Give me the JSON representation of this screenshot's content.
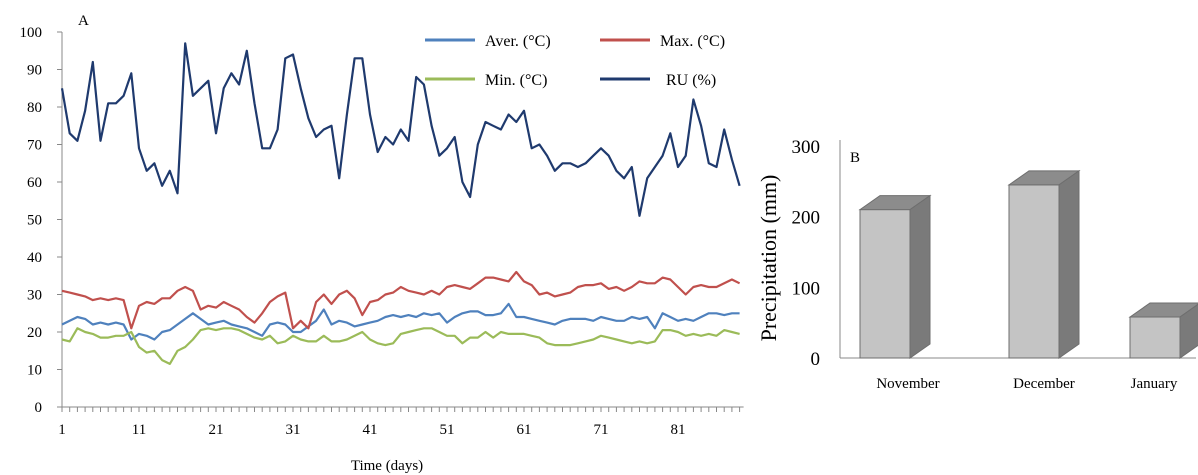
{
  "chart_data": [
    {
      "type": "line",
      "panel_label": "A",
      "xlabel": "Time (days)",
      "ylabel": "",
      "xlim": [
        1,
        89
      ],
      "ylim": [
        0,
        100
      ],
      "yticks": [
        0,
        10,
        20,
        30,
        40,
        50,
        60,
        70,
        80,
        90,
        100
      ],
      "xticks": [
        1,
        11,
        21,
        31,
        41,
        51,
        61,
        71,
        81
      ],
      "legend_position": "top-right",
      "series": [
        {
          "name": "Aver. (°C)",
          "color": "#4f81bd",
          "values": [
            22,
            23,
            24,
            23.5,
            22,
            22.5,
            22,
            22.5,
            22,
            18,
            19.5,
            19,
            18,
            20,
            20.5,
            22,
            23.5,
            25,
            23.5,
            22,
            22.5,
            23,
            22,
            21.5,
            21,
            20,
            19,
            22,
            22.5,
            22,
            20,
            20,
            21.5,
            23,
            26,
            22,
            23,
            22.5,
            21.5,
            22,
            22.5,
            23,
            24,
            24.5,
            24,
            24.5,
            24,
            25,
            24.5,
            25,
            22.5,
            24,
            25,
            25.5,
            25.5,
            24.5,
            24.5,
            25,
            27.5,
            24,
            24,
            23.5,
            23,
            22.5,
            22,
            23,
            23.5,
            23.5,
            23.5,
            23,
            24,
            23.5,
            23,
            23,
            24,
            23.5,
            24,
            21,
            25,
            24,
            23,
            23.5,
            23,
            24,
            25,
            25,
            24.5,
            25,
            25
          ]
        },
        {
          "name": "Max. (°C)",
          "color": "#c0504d",
          "values": [
            31,
            30.5,
            30,
            29.5,
            28.5,
            29,
            28.5,
            29,
            28.5,
            21,
            27,
            28,
            27.5,
            29,
            29,
            31,
            32,
            31,
            26,
            27,
            26.5,
            28,
            27,
            26,
            24,
            22.5,
            25,
            28,
            29.5,
            30.5,
            21,
            23,
            21,
            28,
            30,
            27.5,
            30,
            31,
            29,
            24.5,
            28,
            28.5,
            30,
            30.5,
            32,
            31,
            30.5,
            30,
            31,
            30,
            32,
            32.5,
            32,
            31.5,
            33,
            34.5,
            34.5,
            34,
            33.5,
            36,
            33.5,
            32.5,
            30,
            30.5,
            29.5,
            30,
            30.5,
            32,
            32.5,
            32.5,
            33,
            31.5,
            32,
            31,
            32,
            33.5,
            33,
            33,
            34.5,
            34,
            32,
            30,
            32,
            32.5,
            32,
            32,
            33,
            34,
            33
          ]
        },
        {
          "name": "Min. (°C)",
          "color": "#9bbb59",
          "values": [
            18,
            17.5,
            21,
            20,
            19.5,
            18.5,
            18.5,
            19,
            19,
            20,
            16,
            14.5,
            15,
            12.5,
            11.5,
            15,
            16,
            18,
            20.5,
            21,
            20.5,
            21,
            21,
            20.5,
            19.5,
            18.5,
            18,
            19,
            17,
            17.5,
            19,
            18,
            17.5,
            17.5,
            19,
            17.5,
            17.5,
            18,
            19,
            20,
            18,
            17,
            16.5,
            17,
            19.5,
            20,
            20.5,
            21,
            21,
            20,
            19,
            19,
            17,
            18.5,
            18.5,
            20,
            18.5,
            20,
            19.5,
            19.5,
            19.5,
            19,
            18.5,
            17,
            16.5,
            16.5,
            16.5,
            17,
            17.5,
            18,
            19,
            18.5,
            18,
            17.5,
            17,
            17.5,
            17,
            17.5,
            20.5,
            20.5,
            20,
            19,
            19.5,
            19,
            19.5,
            19,
            20.5,
            20,
            19.5
          ]
        },
        {
          "name": "RU (%)",
          "color": "#1f3a6e",
          "values": [
            85,
            73,
            71,
            79,
            92,
            71,
            81,
            81,
            83,
            89,
            69,
            63,
            65,
            59,
            63,
            57,
            97,
            83,
            85,
            87,
            73,
            85,
            89,
            86,
            95,
            81,
            69,
            69,
            74,
            93,
            94,
            85,
            77,
            72,
            74,
            75,
            61,
            78,
            93,
            93,
            78,
            68,
            72,
            70,
            74,
            71,
            88,
            86,
            75,
            67,
            69,
            72,
            60,
            56,
            70,
            76,
            75,
            74,
            78,
            76,
            79,
            69,
            70,
            67,
            63,
            65,
            65,
            64,
            65,
            67,
            69,
            67,
            63,
            61,
            64,
            51,
            61,
            64,
            67,
            73,
            64,
            67,
            82,
            75,
            65,
            64,
            74,
            66,
            59
          ]
        }
      ]
    },
    {
      "type": "bar",
      "panel_label": "B",
      "ylabel": "Precipitation (mm)",
      "categories": [
        "November",
        "December",
        "January"
      ],
      "values": [
        210,
        245,
        58
      ],
      "ylim": [
        0,
        300
      ],
      "yticks": [
        0,
        100,
        200,
        300
      ],
      "color": "#bfbfbf"
    }
  ]
}
